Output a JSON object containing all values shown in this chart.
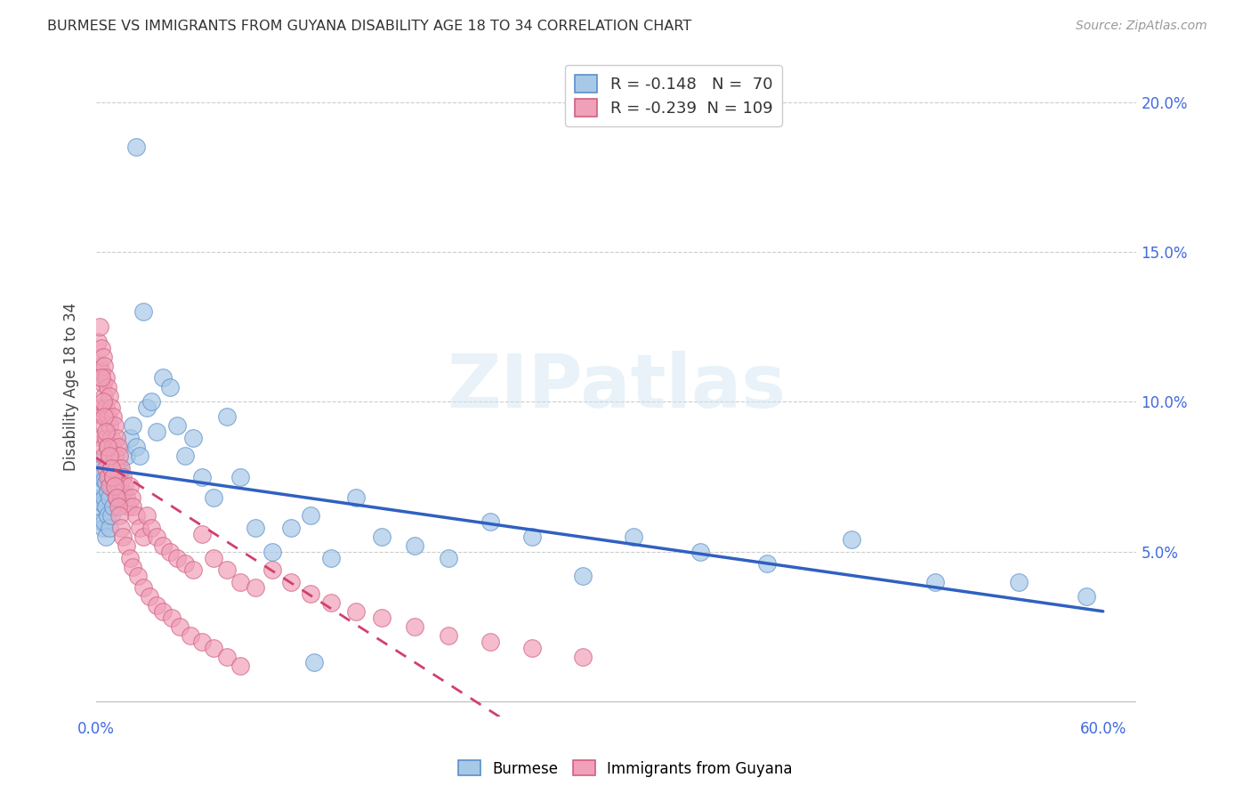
{
  "title": "BURMESE VS IMMIGRANTS FROM GUYANA DISABILITY AGE 18 TO 34 CORRELATION CHART",
  "source": "Source: ZipAtlas.com",
  "ylabel": "Disability Age 18 to 34",
  "xlim": [
    0.0,
    0.62
  ],
  "ylim": [
    -0.005,
    0.215
  ],
  "xticks": [
    0.0,
    0.1,
    0.2,
    0.3,
    0.4,
    0.5,
    0.6
  ],
  "xticklabels_show": [
    "0.0%",
    "",
    "",
    "",
    "",
    "",
    "60.0%"
  ],
  "yticks_right": [
    0.05,
    0.1,
    0.15,
    0.2
  ],
  "yticklabels_right": [
    "5.0%",
    "10.0%",
    "15.0%",
    "20.0%"
  ],
  "burmese_R": -0.148,
  "burmese_N": 70,
  "guyana_R": -0.239,
  "guyana_N": 109,
  "burmese_color": "#a8c8e8",
  "guyana_color": "#f0a0b8",
  "burmese_edge_color": "#5b8fc9",
  "guyana_edge_color": "#d06080",
  "burmese_line_color": "#3060c0",
  "guyana_line_color": "#d04070",
  "watermark": "ZIPatlas",
  "background_color": "#ffffff",
  "burmese_scatter_x": [
    0.001,
    0.002,
    0.002,
    0.002,
    0.003,
    0.003,
    0.003,
    0.004,
    0.004,
    0.004,
    0.005,
    0.005,
    0.005,
    0.006,
    0.006,
    0.006,
    0.007,
    0.007,
    0.008,
    0.008,
    0.008,
    0.009,
    0.009,
    0.01,
    0.01,
    0.011,
    0.012,
    0.013,
    0.014,
    0.015,
    0.016,
    0.018,
    0.02,
    0.022,
    0.024,
    0.026,
    0.028,
    0.03,
    0.033,
    0.036,
    0.04,
    0.044,
    0.048,
    0.053,
    0.058,
    0.063,
    0.07,
    0.078,
    0.086,
    0.095,
    0.105,
    0.116,
    0.128,
    0.14,
    0.155,
    0.17,
    0.19,
    0.21,
    0.235,
    0.26,
    0.29,
    0.32,
    0.36,
    0.4,
    0.45,
    0.5,
    0.55,
    0.59,
    0.024,
    0.13
  ],
  "burmese_scatter_y": [
    0.075,
    0.08,
    0.068,
    0.065,
    0.078,
    0.072,
    0.06,
    0.076,
    0.066,
    0.058,
    0.074,
    0.068,
    0.06,
    0.073,
    0.065,
    0.055,
    0.07,
    0.062,
    0.075,
    0.068,
    0.058,
    0.072,
    0.062,
    0.078,
    0.065,
    0.07,
    0.072,
    0.075,
    0.078,
    0.074,
    0.07,
    0.082,
    0.088,
    0.092,
    0.085,
    0.082,
    0.13,
    0.098,
    0.1,
    0.09,
    0.108,
    0.105,
    0.092,
    0.082,
    0.088,
    0.075,
    0.068,
    0.095,
    0.075,
    0.058,
    0.05,
    0.058,
    0.062,
    0.048,
    0.068,
    0.055,
    0.052,
    0.048,
    0.06,
    0.055,
    0.042,
    0.055,
    0.05,
    0.046,
    0.054,
    0.04,
    0.04,
    0.035,
    0.185,
    0.013
  ],
  "guyana_scatter_x": [
    0.001,
    0.001,
    0.002,
    0.002,
    0.002,
    0.003,
    0.003,
    0.003,
    0.003,
    0.004,
    0.004,
    0.004,
    0.004,
    0.005,
    0.005,
    0.005,
    0.005,
    0.006,
    0.006,
    0.006,
    0.006,
    0.007,
    0.007,
    0.007,
    0.007,
    0.008,
    0.008,
    0.008,
    0.008,
    0.009,
    0.009,
    0.009,
    0.01,
    0.01,
    0.01,
    0.011,
    0.011,
    0.012,
    0.012,
    0.012,
    0.013,
    0.013,
    0.014,
    0.014,
    0.015,
    0.015,
    0.016,
    0.017,
    0.018,
    0.019,
    0.02,
    0.021,
    0.022,
    0.024,
    0.026,
    0.028,
    0.03,
    0.033,
    0.036,
    0.04,
    0.044,
    0.048,
    0.053,
    0.058,
    0.063,
    0.07,
    0.078,
    0.086,
    0.095,
    0.105,
    0.116,
    0.128,
    0.14,
    0.155,
    0.17,
    0.19,
    0.21,
    0.235,
    0.26,
    0.29,
    0.003,
    0.004,
    0.005,
    0.006,
    0.007,
    0.008,
    0.009,
    0.01,
    0.011,
    0.012,
    0.013,
    0.014,
    0.015,
    0.016,
    0.018,
    0.02,
    0.022,
    0.025,
    0.028,
    0.032,
    0.036,
    0.04,
    0.045,
    0.05,
    0.056,
    0.063,
    0.07,
    0.078,
    0.086
  ],
  "guyana_scatter_y": [
    0.12,
    0.108,
    0.125,
    0.112,
    0.098,
    0.118,
    0.11,
    0.098,
    0.088,
    0.115,
    0.106,
    0.096,
    0.085,
    0.112,
    0.102,
    0.092,
    0.082,
    0.108,
    0.098,
    0.088,
    0.078,
    0.105,
    0.095,
    0.085,
    0.075,
    0.102,
    0.092,
    0.082,
    0.072,
    0.098,
    0.088,
    0.078,
    0.095,
    0.085,
    0.075,
    0.092,
    0.082,
    0.088,
    0.078,
    0.068,
    0.085,
    0.075,
    0.082,
    0.072,
    0.078,
    0.068,
    0.075,
    0.072,
    0.068,
    0.065,
    0.072,
    0.068,
    0.065,
    0.062,
    0.058,
    0.055,
    0.062,
    0.058,
    0.055,
    0.052,
    0.05,
    0.048,
    0.046,
    0.044,
    0.056,
    0.048,
    0.044,
    0.04,
    0.038,
    0.044,
    0.04,
    0.036,
    0.033,
    0.03,
    0.028,
    0.025,
    0.022,
    0.02,
    0.018,
    0.015,
    0.108,
    0.1,
    0.095,
    0.09,
    0.085,
    0.082,
    0.078,
    0.075,
    0.072,
    0.068,
    0.065,
    0.062,
    0.058,
    0.055,
    0.052,
    0.048,
    0.045,
    0.042,
    0.038,
    0.035,
    0.032,
    0.03,
    0.028,
    0.025,
    0.022,
    0.02,
    0.018,
    0.015,
    0.012
  ]
}
